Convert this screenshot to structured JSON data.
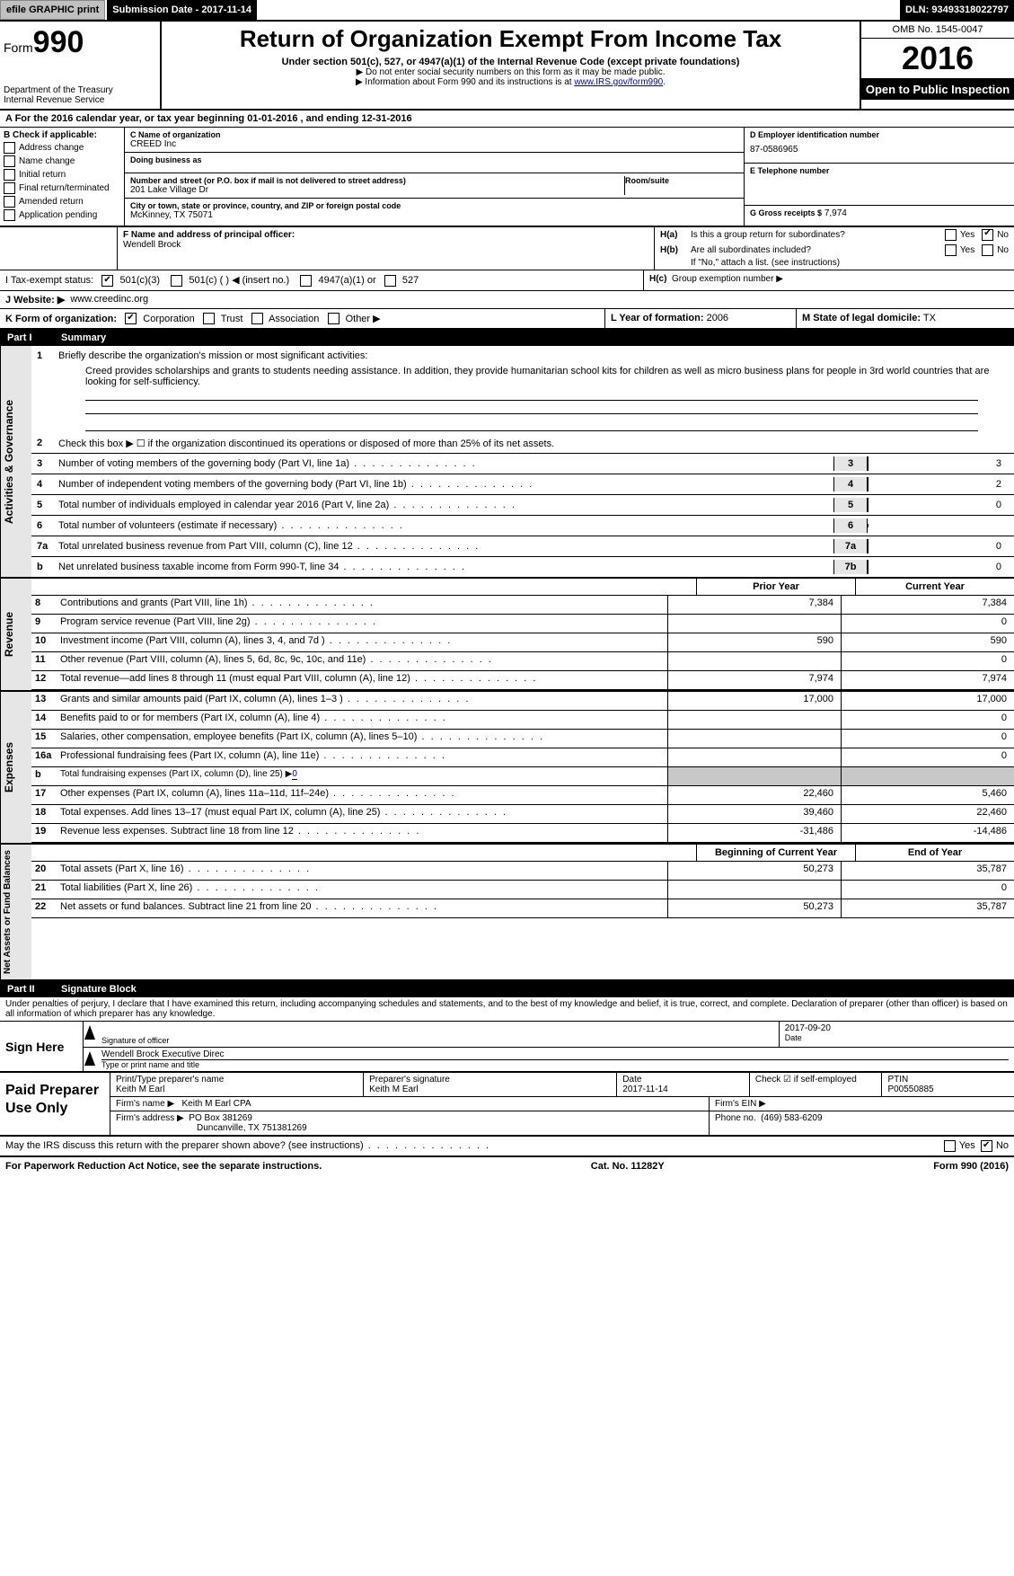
{
  "topbar": {
    "efile_btn": "efile GRAPHIC print",
    "submission": "Submission Date - 2017-11-14",
    "dln": "DLN: 93493318022797"
  },
  "header": {
    "form_prefix": "Form",
    "form_number": "990",
    "dept": "Department of the Treasury",
    "irs": "Internal Revenue Service",
    "title": "Return of Organization Exempt From Income Tax",
    "sub1": "Under section 501(c), 527, or 4947(a)(1) of the Internal Revenue Code (except private foundations)",
    "sub2a": "▶ Do not enter social security numbers on this form as it may be made public.",
    "sub2b_pre": "▶ Information about Form 990 and its instructions is at ",
    "sub2b_link": "www.IRS.gov/form990",
    "omb": "OMB No. 1545-0047",
    "year": "2016",
    "open_public": "Open to Public Inspection"
  },
  "A": {
    "line": "A  For the 2016 calendar year, or tax year beginning 01-01-2016    , and ending 12-31-2016"
  },
  "B": {
    "label": "B  Check if applicable:",
    "opts": [
      "Address change",
      "Name change",
      "Initial return",
      "Final return/terminated",
      "Amended return",
      "Application pending"
    ]
  },
  "C": {
    "name_lab": "C Name of organization",
    "name": "CREED Inc",
    "dba_lab": "Doing business as",
    "dba": "",
    "street_lab": "Number and street (or P.O. box if mail is not delivered to street address)",
    "street": "201 Lake Village Dr",
    "room_lab": "Room/suite",
    "city_lab": "City or town, state or province, country, and ZIP or foreign postal code",
    "city": "McKinney, TX  75071"
  },
  "D": {
    "lab": "D Employer identification number",
    "val": "87-0586965"
  },
  "E": {
    "lab": "E Telephone number",
    "val": ""
  },
  "G": {
    "lab": "G Gross receipts $",
    "val": "7,974"
  },
  "F": {
    "lab": "F  Name and address of principal officer:",
    "val": "Wendell Brock"
  },
  "H": {
    "a": "Is this a group return for subordinates?",
    "b": "Are all subordinates included?",
    "b2": "If \"No,\" attach a list. (see instructions)",
    "c": "Group exemption number ▶",
    "yes": "Yes",
    "no": "No"
  },
  "I": {
    "lab": "I   Tax-exempt status:",
    "o1": "501(c)(3)",
    "o2": "501(c) (  ) ◀ (insert no.)",
    "o3": "4947(a)(1) or",
    "o4": "527"
  },
  "J": {
    "lab": "J   Website: ▶",
    "val": "www.creedinc.org"
  },
  "K": {
    "lab": "K Form of organization:",
    "opts": [
      "Corporation",
      "Trust",
      "Association",
      "Other ▶"
    ]
  },
  "L": {
    "lab": "L Year of formation:",
    "val": "2006"
  },
  "M": {
    "lab": "M State of legal domicile:",
    "val": "TX"
  },
  "part1": {
    "pn": "Part I",
    "title": "Summary"
  },
  "gov": {
    "vlabel": "Activities & Governance",
    "q1": "Briefly describe the organization's mission or most significant activities:",
    "q1text": "Creed provides scholarships and grants to students needing assistance. In addition, they provide humanitarian school kits for children as well as micro business plans for people in 3rd world countries that are looking for self-sufficiency.",
    "q2": "Check this box ▶ ☐  if the organization discontinued its operations or disposed of more than 25% of its net assets.",
    "rows": [
      {
        "n": "3",
        "t": "Number of voting members of the governing body (Part VI, line 1a)",
        "box": "3",
        "val": "3"
      },
      {
        "n": "4",
        "t": "Number of independent voting members of the governing body (Part VI, line 1b)",
        "box": "4",
        "val": "2"
      },
      {
        "n": "5",
        "t": "Total number of individuals employed in calendar year 2016 (Part V, line 2a)",
        "box": "5",
        "val": "0"
      },
      {
        "n": "6",
        "t": "Total number of volunteers (estimate if necessary)",
        "box": "6",
        "val": ""
      },
      {
        "n": "7a",
        "t": "Total unrelated business revenue from Part VIII, column (C), line 12",
        "box": "7a",
        "val": "0"
      },
      {
        "n": "b",
        "t": "Net unrelated business taxable income from Form 990-T, line 34",
        "box": "7b",
        "val": "0"
      }
    ]
  },
  "pycy": {
    "py": "Prior Year",
    "cy": "Current Year"
  },
  "revenue": {
    "vlabel": "Revenue",
    "rows": [
      {
        "n": "8",
        "t": "Contributions and grants (Part VIII, line 1h)",
        "py": "7,384",
        "cy": "7,384"
      },
      {
        "n": "9",
        "t": "Program service revenue (Part VIII, line 2g)",
        "py": "",
        "cy": "0"
      },
      {
        "n": "10",
        "t": "Investment income (Part VIII, column (A), lines 3, 4, and 7d )",
        "py": "590",
        "cy": "590"
      },
      {
        "n": "11",
        "t": "Other revenue (Part VIII, column (A), lines 5, 6d, 8c, 9c, 10c, and 11e)",
        "py": "",
        "cy": "0"
      },
      {
        "n": "12",
        "t": "Total revenue—add lines 8 through 11 (must equal Part VIII, column (A), line 12)",
        "py": "7,974",
        "cy": "7,974"
      }
    ]
  },
  "expenses": {
    "vlabel": "Expenses",
    "rows": [
      {
        "n": "13",
        "t": "Grants and similar amounts paid (Part IX, column (A), lines 1–3 )",
        "py": "17,000",
        "cy": "17,000"
      },
      {
        "n": "14",
        "t": "Benefits paid to or for members (Part IX, column (A), line 4)",
        "py": "",
        "cy": "0"
      },
      {
        "n": "15",
        "t": "Salaries, other compensation, employee benefits (Part IX, column (A), lines 5–10)",
        "py": "",
        "cy": "0"
      },
      {
        "n": "16a",
        "t": "Professional fundraising fees (Part IX, column (A), line 11e)",
        "py": "",
        "cy": "0"
      }
    ],
    "b": {
      "n": "b",
      "t": "Total fundraising expenses (Part IX, column (D), line 25) ▶",
      "val": "0"
    },
    "rows2": [
      {
        "n": "17",
        "t": "Other expenses (Part IX, column (A), lines 11a–11d, 11f–24e)",
        "py": "22,460",
        "cy": "5,460"
      },
      {
        "n": "18",
        "t": "Total expenses. Add lines 13–17 (must equal Part IX, column (A), line 25)",
        "py": "39,460",
        "cy": "22,460"
      },
      {
        "n": "19",
        "t": "Revenue less expenses. Subtract line 18 from line 12",
        "py": "-31,486",
        "cy": "-14,486"
      }
    ]
  },
  "netassets": {
    "vlabel": "Net Assets or Fund Balances",
    "heads": {
      "py": "Beginning of Current Year",
      "cy": "End of Year"
    },
    "rows": [
      {
        "n": "20",
        "t": "Total assets (Part X, line 16)",
        "py": "50,273",
        "cy": "35,787"
      },
      {
        "n": "21",
        "t": "Total liabilities (Part X, line 26)",
        "py": "",
        "cy": "0"
      },
      {
        "n": "22",
        "t": "Net assets or fund balances. Subtract line 21 from line 20",
        "py": "50,273",
        "cy": "35,787"
      }
    ]
  },
  "part2": {
    "pn": "Part II",
    "title": "Signature Block",
    "decl": "Under penalties of perjury, I declare that I have examined this return, including accompanying schedules and statements, and to the best of my knowledge and belief, it is true, correct, and complete. Declaration of preparer (other than officer) is based on all information of which preparer has any knowledge."
  },
  "sign": {
    "here": "Sign Here",
    "sig_officer": "Signature of officer",
    "date": "Date",
    "date_val": "2017-09-20",
    "name": "Wendell Brock  Executive Direc",
    "name_lab": "Type or print name and title"
  },
  "paid": {
    "lab": "Paid Preparer Use Only",
    "r1": {
      "a_lab": "Print/Type preparer's name",
      "a": "Keith M Earl",
      "b_lab": "Preparer's signature",
      "b": "Keith M Earl",
      "c_lab": "Date",
      "c": "2017-11-14",
      "d_lab": "Check ☑ if self-employed",
      "e_lab": "PTIN",
      "e": "P00550885"
    },
    "r2": {
      "a_lab": "Firm's name  ▶",
      "a": "Keith M Earl CPA",
      "b_lab": "Firm's EIN ▶",
      "b": ""
    },
    "r3": {
      "a_lab": "Firm's address ▶",
      "a": "PO Box 381269",
      "a2": "Duncanville, TX  751381269",
      "b_lab": "Phone no.",
      "b": "(469) 583-6209"
    }
  },
  "discuss": {
    "q": "May the IRS discuss this return with the preparer shown above? (see instructions)",
    "yes": "Yes",
    "no": "No"
  },
  "footer": {
    "left": "For Paperwork Reduction Act Notice, see the separate instructions.",
    "mid": "Cat. No. 11282Y",
    "right": "Form 990 (2016)"
  },
  "colors": {
    "black": "#000000",
    "grey_bg": "#e6e6e6",
    "grey_cell": "#c8c8c8",
    "link": "#0000cc",
    "btn_bg": "#c0c0c0"
  }
}
